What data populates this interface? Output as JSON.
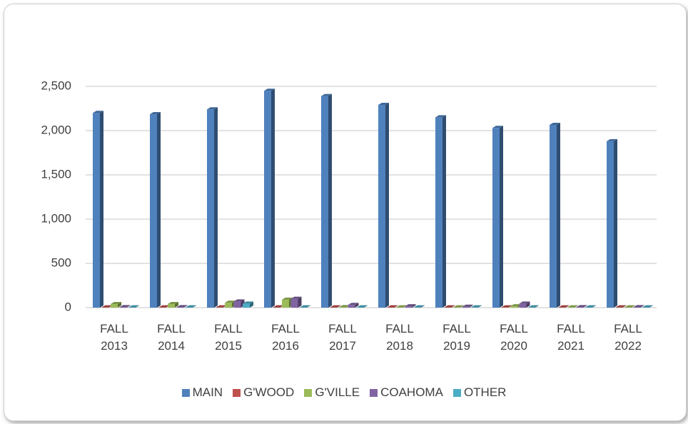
{
  "chart_data": {
    "type": "bar",
    "categories": [
      "FALL 2013",
      "FALL 2014",
      "FALL 2015",
      "FALL 2016",
      "FALL 2017",
      "FALL 2018",
      "FALL 2019",
      "FALL 2020",
      "FALL 2021",
      "FALL 2022"
    ],
    "series": [
      {
        "name": "MAIN",
        "color": "#4f81bd",
        "values": [
          2200,
          2185,
          2240,
          2450,
          2390,
          2290,
          2150,
          2030,
          2065,
          1880
        ]
      },
      {
        "name": "G'WOOD",
        "color": "#c0504d",
        "values": [
          3,
          3,
          3,
          3,
          3,
          3,
          3,
          3,
          3,
          3
        ]
      },
      {
        "name": "G'VILLE",
        "color": "#9bbb59",
        "values": [
          40,
          40,
          55,
          90,
          5,
          3,
          3,
          15,
          3,
          3
        ]
      },
      {
        "name": "COAHOMA",
        "color": "#8064a2",
        "values": [
          5,
          5,
          70,
          100,
          30,
          15,
          10,
          45,
          5,
          5
        ]
      },
      {
        "name": "OTHER",
        "color": "#4bacc6",
        "values": [
          3,
          3,
          45,
          3,
          3,
          3,
          3,
          3,
          3,
          3
        ]
      }
    ],
    "ylim": [
      0,
      2500
    ],
    "yticks": [
      0,
      500,
      {
        "value": 1000,
        "label": "1,000"
      },
      {
        "value": 1500,
        "label": "1,500"
      },
      {
        "value": 2000,
        "label": "2,000"
      },
      {
        "value": 2500,
        "label": "2,500"
      }
    ],
    "grid": true,
    "legend": "bottom"
  }
}
